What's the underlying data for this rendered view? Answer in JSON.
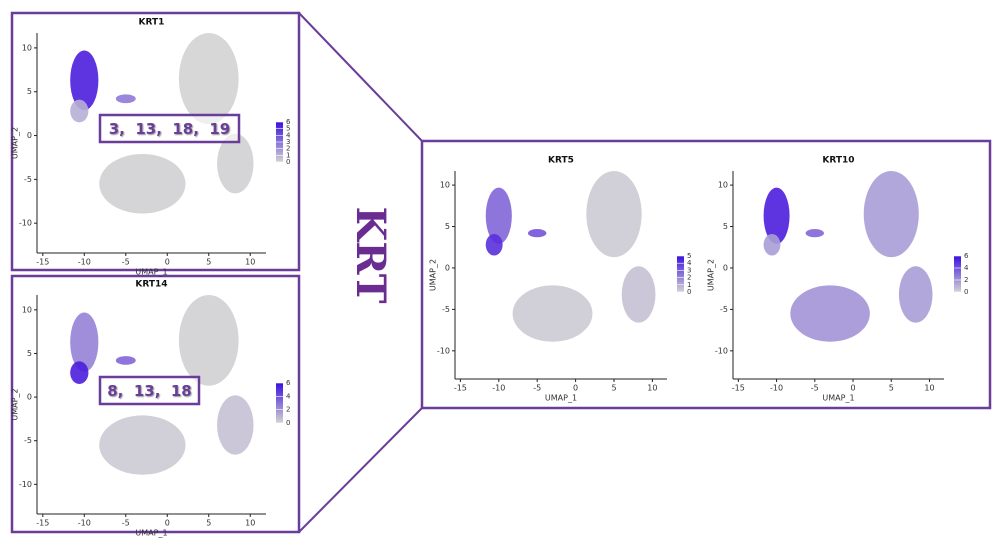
{
  "side_label": "KRT",
  "panels": [
    {
      "title": "KRT1",
      "x_label": "UMAP_1",
      "y_label": "UMAP_2",
      "xlim": [
        -15.7,
        11.9
      ],
      "ylim": [
        -13.4,
        11.7
      ],
      "xticks": [
        -15,
        -10,
        -5,
        0,
        5,
        10
      ],
      "yticks": [
        -10,
        -5,
        0,
        5,
        10
      ],
      "legend_ticks": [
        0,
        1,
        2,
        3,
        4,
        5,
        6
      ],
      "annotation": "3,  13,  18,  19"
    },
    {
      "title": "KRT14",
      "x_label": "UMAP_1",
      "y_label": "UMAP_2",
      "xlim": [
        -15.7,
        11.9
      ],
      "ylim": [
        -13.4,
        11.7
      ],
      "xticks": [
        -15,
        -10,
        -5,
        0,
        5,
        10
      ],
      "yticks": [
        -10,
        -5,
        0,
        5,
        10
      ],
      "legend_ticks": [
        0,
        2,
        4,
        6
      ],
      "annotation": "8,  13,  18"
    },
    {
      "title": "KRT5",
      "x_label": "UMAP_1",
      "y_label": "UMAP_2",
      "xlim": [
        -15.7,
        11.9
      ],
      "ylim": [
        -13.4,
        11.7
      ],
      "xticks": [
        -15,
        -10,
        -5,
        0,
        5,
        10
      ],
      "yticks": [
        -10,
        -5,
        0,
        5,
        10
      ],
      "legend_ticks": [
        0,
        1,
        2,
        3,
        4,
        5
      ]
    },
    {
      "title": "KRT10",
      "x_label": "UMAP_1",
      "y_label": "UMAP_2",
      "xlim": [
        -15.7,
        11.9
      ],
      "ylim": [
        -13.4,
        11.7
      ],
      "xticks": [
        -15,
        -10,
        -5,
        0,
        5,
        10
      ],
      "yticks": [
        -10,
        -5,
        0,
        5,
        10
      ],
      "legend_ticks": [
        0,
        2,
        4,
        6
      ]
    }
  ]
}
